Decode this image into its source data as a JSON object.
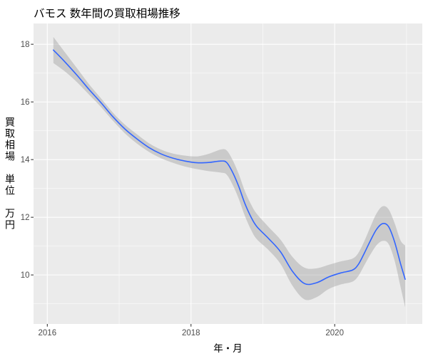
{
  "chart_data": {
    "type": "line",
    "title": "バモス 数年間の買取相場推移",
    "xlabel": "年・月",
    "ylabel": "買取相場　単位　万円",
    "xlim": [
      "2015-10-23",
      "2021-03-22"
    ],
    "ylim": [
      8.3,
      18.72
    ],
    "x_ticks": [
      "2016",
      "2018",
      "2020"
    ],
    "y_ticks": [
      10,
      12,
      14,
      16,
      18
    ],
    "grid": true,
    "legend": "none",
    "colors": {
      "line": "#3366FF",
      "band": "#999999",
      "panel": "#EBEBEB",
      "grid": "#FFFFFF"
    },
    "series": [
      {
        "x": [
          "2016-02-01",
          "2016-04-01",
          "2016-06-01",
          "2016-08-01",
          "2016-10-01",
          "2016-12-01",
          "2017-02-01",
          "2017-04-01",
          "2017-06-01",
          "2017-08-01",
          "2017-10-01",
          "2017-12-01",
          "2018-02-01",
          "2018-04-01",
          "2018-06-01",
          "2018-07-01",
          "2018-08-01",
          "2018-09-01",
          "2018-10-01",
          "2018-11-01",
          "2018-12-01",
          "2019-02-01",
          "2019-04-01",
          "2019-06-01",
          "2019-08-01",
          "2019-10-01",
          "2019-12-01",
          "2020-02-01",
          "2020-04-01",
          "2020-05-01",
          "2020-06-01",
          "2020-07-01",
          "2020-08-01",
          "2020-09-01",
          "2020-10-01",
          "2020-11-01",
          "2020-12-01",
          "2020-12-25"
        ],
        "y": [
          17.8,
          17.38,
          16.92,
          16.43,
          15.97,
          15.48,
          15.05,
          14.72,
          14.42,
          14.2,
          14.05,
          13.95,
          13.89,
          13.9,
          13.95,
          13.9,
          13.55,
          13.06,
          12.49,
          12.02,
          11.68,
          11.25,
          10.8,
          10.12,
          9.7,
          9.73,
          9.93,
          10.07,
          10.17,
          10.37,
          10.77,
          11.19,
          11.58,
          11.78,
          11.68,
          11.15,
          10.4,
          9.85
        ],
        "ymin": [
          17.35,
          17.05,
          16.68,
          16.25,
          15.82,
          15.34,
          14.9,
          14.56,
          14.27,
          14.05,
          13.89,
          13.76,
          13.67,
          13.6,
          13.55,
          13.48,
          13.12,
          12.63,
          12.06,
          11.58,
          11.24,
          10.85,
          10.38,
          9.62,
          9.15,
          9.23,
          9.51,
          9.67,
          9.77,
          9.97,
          10.35,
          10.71,
          11.03,
          11.18,
          11.08,
          10.5,
          9.6,
          8.88
        ],
        "ymax": [
          18.25,
          17.71,
          17.16,
          16.61,
          16.12,
          15.62,
          15.2,
          14.88,
          14.57,
          14.35,
          14.21,
          14.14,
          14.11,
          14.2,
          14.35,
          14.32,
          13.98,
          13.49,
          12.92,
          12.46,
          12.12,
          11.65,
          11.22,
          10.62,
          10.25,
          10.23,
          10.35,
          10.47,
          10.57,
          10.77,
          11.19,
          11.67,
          12.13,
          12.38,
          12.28,
          11.8,
          11.2,
          11.02
        ]
      }
    ]
  }
}
